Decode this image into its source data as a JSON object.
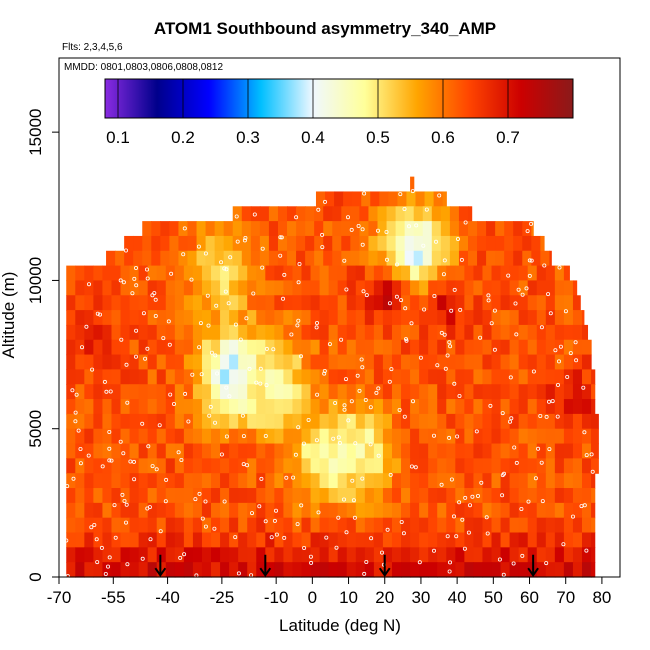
{
  "header": {
    "title": "ATOM1 Southbound asymmetry_340_AMP",
    "flights": "Flts: 2,3,4,5,6",
    "mmdd": "MMDD: 0801,0803,0806,0808,0812"
  },
  "colors": {
    "scale": [
      "#8a2be2",
      "#00008b",
      "#0000ff",
      "#00bfff",
      "#f0f8ff",
      "#ffff99",
      "#ffa500",
      "#ff4500",
      "#cc0000",
      "#8b1a1a"
    ]
  },
  "chart_data": {
    "type": "heatmap",
    "title": "ATOM1 Southbound asymmetry_340_AMP",
    "xlabel": "Latitude (deg N)",
    "ylabel": "Altitude (m)",
    "xlim": [
      -70,
      85
    ],
    "ylim": [
      0,
      17500
    ],
    "x_ticks": [
      -70,
      -55,
      -40,
      -25,
      -10,
      0,
      10,
      20,
      30,
      40,
      50,
      60,
      70,
      80
    ],
    "y_ticks": [
      0,
      5000,
      10000,
      15000
    ],
    "colorbar": {
      "range": [
        0.08,
        0.8
      ],
      "ticks": [
        0.1,
        0.2,
        0.3,
        0.4,
        0.5,
        0.6,
        0.7
      ]
    },
    "arrow_latitudes": [
      -42,
      -13,
      20,
      61
    ],
    "altitude_bins": [
      {
        "alt": 13250,
        "lat": [
          27,
          28
        ]
      },
      {
        "alt": 12750,
        "lat": [
          1,
          37
        ]
      },
      {
        "alt": 12250,
        "lat": [
          -22,
          44
        ]
      },
      {
        "alt": 11750,
        "lat": [
          -47,
          61
        ]
      },
      {
        "alt": 11250,
        "lat": [
          -52,
          64
        ]
      },
      {
        "alt": 10750,
        "lat": [
          -57,
          66
        ]
      },
      {
        "alt": 10250,
        "lat": [
          -68,
          71
        ]
      },
      {
        "alt": 9750,
        "lat": [
          -68,
          73
        ]
      },
      {
        "alt": 9250,
        "lat": [
          -68,
          74
        ]
      },
      {
        "alt": 8750,
        "lat": [
          -68,
          75
        ]
      },
      {
        "alt": 8250,
        "lat": [
          -68,
          76
        ]
      },
      {
        "alt": 7750,
        "lat": [
          -68,
          77
        ]
      },
      {
        "alt": 7250,
        "lat": [
          -68,
          77
        ]
      },
      {
        "alt": 6750,
        "lat": [
          -68,
          78
        ]
      },
      {
        "alt": 6250,
        "lat": [
          -68,
          78
        ]
      },
      {
        "alt": 5750,
        "lat": [
          -68,
          78
        ]
      },
      {
        "alt": 5250,
        "lat": [
          -68,
          79
        ]
      },
      {
        "alt": 4750,
        "lat": [
          -68,
          79
        ]
      },
      {
        "alt": 4250,
        "lat": [
          -68,
          79
        ]
      },
      {
        "alt": 3750,
        "lat": [
          -68,
          79
        ]
      },
      {
        "alt": 3250,
        "lat": [
          -68,
          78
        ]
      },
      {
        "alt": 2750,
        "lat": [
          -68,
          78
        ]
      },
      {
        "alt": 2250,
        "lat": [
          -68,
          78
        ]
      },
      {
        "alt": 1750,
        "lat": [
          -68,
          78
        ]
      },
      {
        "alt": 1250,
        "lat": [
          -68,
          78
        ]
      },
      {
        "alt": 750,
        "lat": [
          -68,
          78
        ]
      },
      {
        "alt": 250,
        "lat": [
          -68,
          78
        ]
      }
    ],
    "value_model": {
      "base": 0.63,
      "boundary_layer": {
        "below_alt": 2000,
        "value": 0.72
      },
      "low_anomalies": [
        {
          "lat": 3,
          "alt": 4000,
          "value": 0.48
        },
        {
          "lat": 13,
          "alt": 4200,
          "value": 0.47
        },
        {
          "lat": -22,
          "alt": 6800,
          "value": 0.36
        },
        {
          "lat": -10,
          "alt": 6500,
          "value": 0.47
        },
        {
          "lat": 28,
          "alt": 11000,
          "value": 0.38
        },
        {
          "lat": -25,
          "alt": 10300,
          "value": 0.5
        }
      ],
      "high_anomalies": [
        {
          "lat": 20,
          "alt": 9500,
          "value": 0.72
        },
        {
          "lat": 36,
          "alt": 9000,
          "value": 0.7
        },
        {
          "lat": 72,
          "alt": 6000,
          "value": 0.71
        },
        {
          "lat": -60,
          "alt": 8000,
          "value": 0.69
        }
      ]
    }
  }
}
